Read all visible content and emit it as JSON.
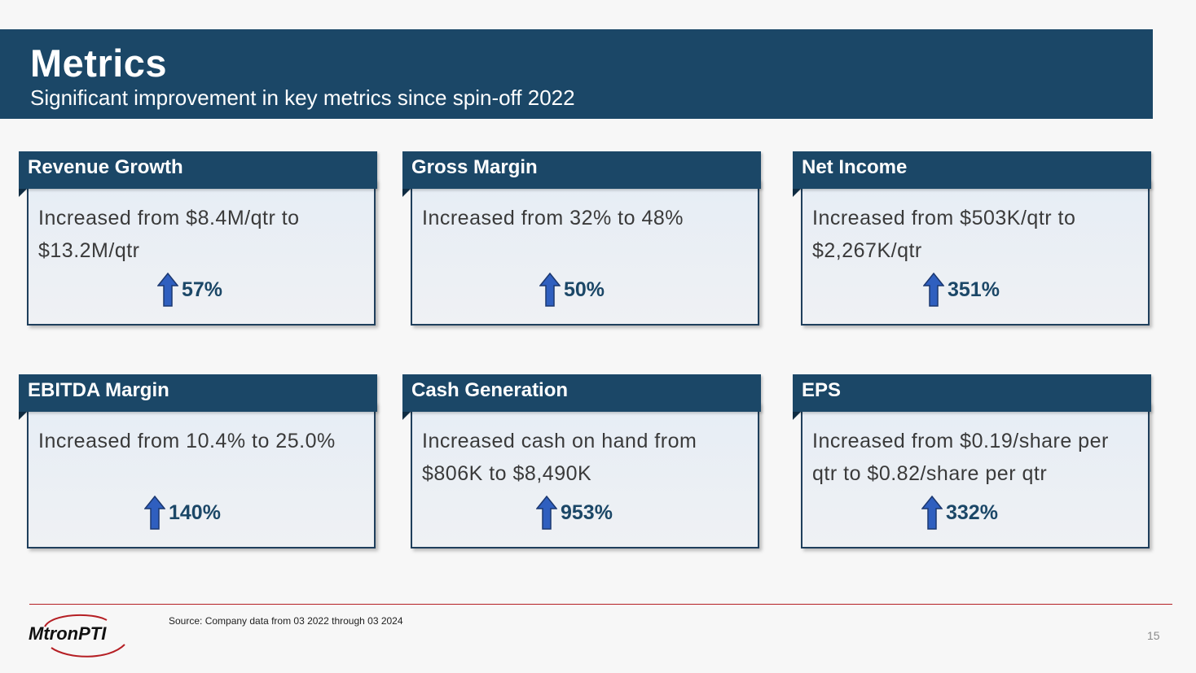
{
  "header": {
    "title": "Metrics",
    "subtitle": "Significant improvement in key metrics since spin-off 2022"
  },
  "cards": [
    {
      "title": "Revenue Growth",
      "text": "Increased from $8.4M/qtr to $13.2M/qtr",
      "change": "57%"
    },
    {
      "title": "Gross Margin",
      "text": "Increased from 32% to 48%",
      "change": "50%"
    },
    {
      "title": "Net Income",
      "text": "Increased from $503K/qtr to $2,267K/qtr",
      "change": "351%"
    },
    {
      "title": "EBITDA Margin",
      "text": "Increased from 10.4% to 25.0%",
      "change": "140%"
    },
    {
      "title": "Cash Generation",
      "text": "Increased cash on hand from $806K to $8,490K",
      "change": "953%"
    },
    {
      "title": "EPS",
      "text": "Increased from $0.19/share per qtr to $0.82/share per qtr",
      "change": "332%"
    }
  ],
  "footer": {
    "logo_text": "MtronPTI",
    "source": "Source: Company data from 03 2022 through 03 2024",
    "page_number": "15"
  },
  "colors": {
    "brand_navy": "#1b4767",
    "accent_red": "#b51f24",
    "arrow_blue": "#2f5fbf"
  },
  "icons": {
    "increase": "up-arrow-icon"
  }
}
